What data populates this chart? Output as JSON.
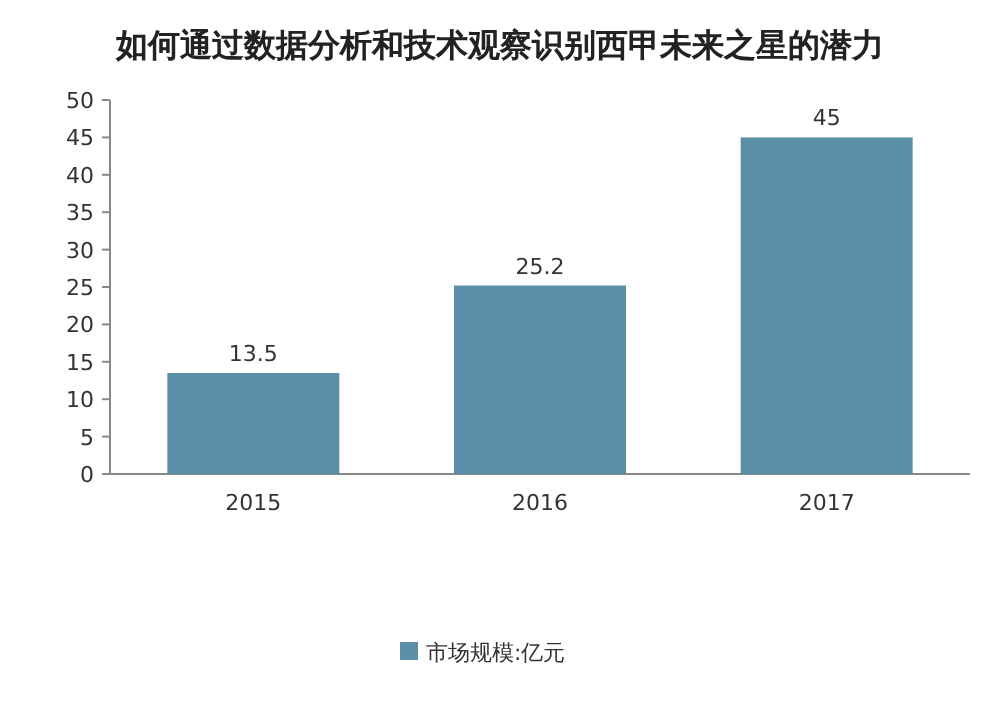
{
  "chart_data": {
    "type": "bar",
    "title": "如何通过数据分析和技术观察识别西甲未来之星的潜力",
    "categories": [
      "2015",
      "2016",
      "2017"
    ],
    "series": [
      {
        "name": "市场规模:亿元",
        "color": "#5b8fa8",
        "values": [
          13.5,
          25.2,
          45
        ],
        "value_labels": [
          "13.5",
          "25.2",
          "45"
        ]
      }
    ],
    "ylim": [
      0,
      50
    ],
    "yticks": [
      0,
      5,
      10,
      15,
      20,
      25,
      30,
      35,
      40,
      45,
      50
    ],
    "grid": false,
    "legend": "bottom"
  }
}
